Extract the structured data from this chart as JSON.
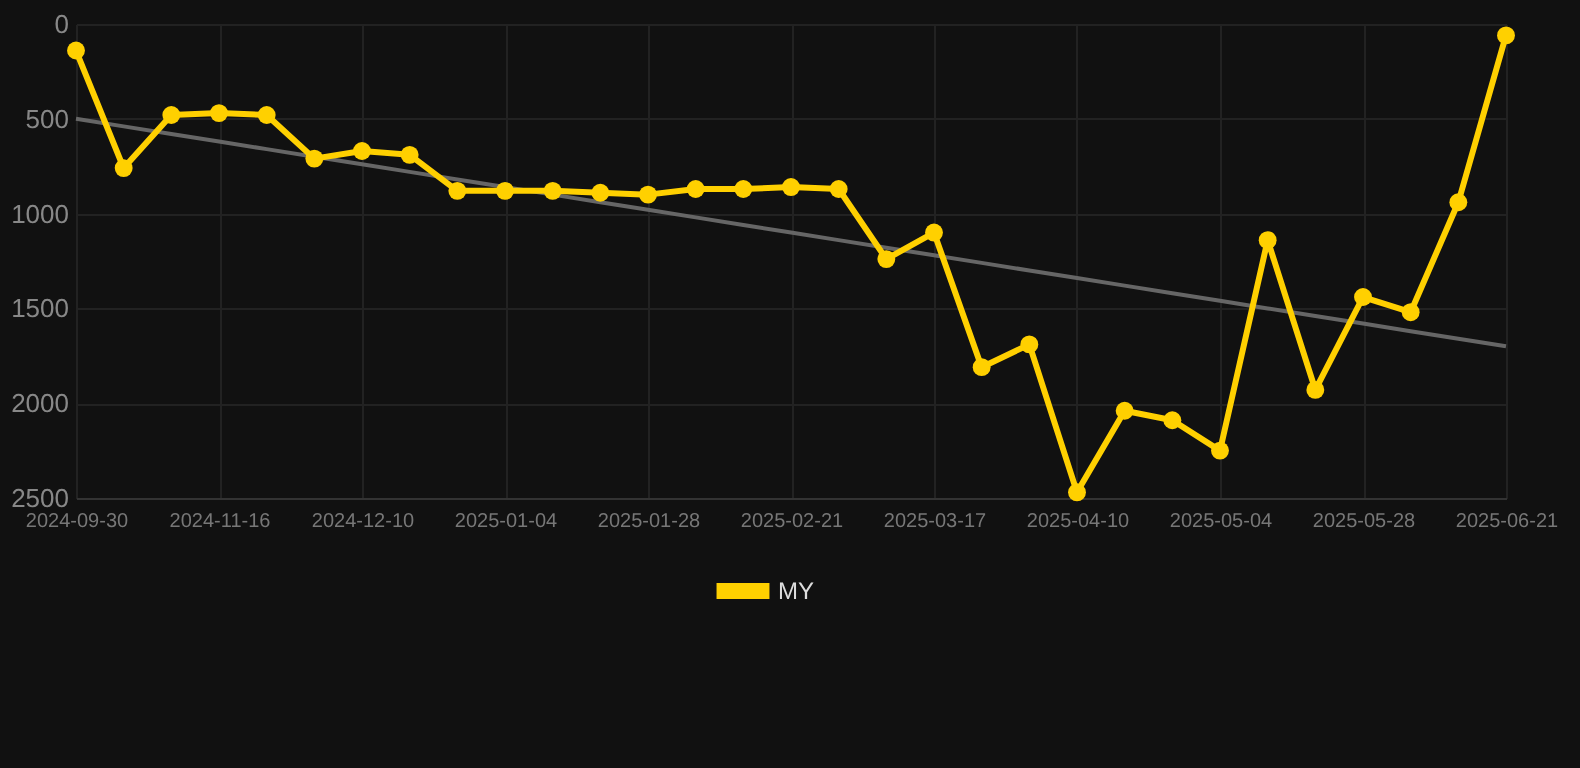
{
  "chart_data": {
    "type": "line",
    "categories": [
      "2024-09-30",
      null,
      null,
      "2024-11-16",
      null,
      null,
      "2024-12-10",
      null,
      null,
      "2025-01-04",
      null,
      null,
      "2025-01-28",
      null,
      null,
      "2025-02-21",
      null,
      null,
      "2025-03-17",
      null,
      null,
      "2025-04-10",
      null,
      null,
      "2025-05-04",
      null,
      null,
      "2025-05-28",
      null,
      null,
      "2025-06-21"
    ],
    "series": [
      {
        "name": "MY",
        "color": "#ffd000",
        "values": [
          140,
          760,
          480,
          470,
          480,
          710,
          670,
          690,
          880,
          880,
          880,
          890,
          900,
          870,
          870,
          860,
          870,
          1240,
          1100,
          1810,
          1690,
          2470,
          2040,
          2090,
          2250,
          1140,
          1930,
          1440,
          1520,
          940,
          60
        ]
      },
      {
        "type": "line",
        "color": "#666666",
        "marker": "none",
        "values": [
          500,
          540,
          580,
          620,
          660,
          700,
          740,
          780,
          820,
          860,
          900,
          940,
          980,
          1020,
          1060,
          1100,
          1140,
          1180,
          1220,
          1260,
          1300,
          1340,
          1380,
          1420,
          1460,
          1500,
          1540,
          1580,
          1620,
          1660,
          1700
        ]
      }
    ],
    "ylim": [
      2500,
      0
    ],
    "yticks": [
      0,
      500,
      1000,
      1500,
      2000,
      2500
    ],
    "grid": true,
    "legend": "bottom",
    "marker": "circle",
    "line_style": "solid"
  }
}
